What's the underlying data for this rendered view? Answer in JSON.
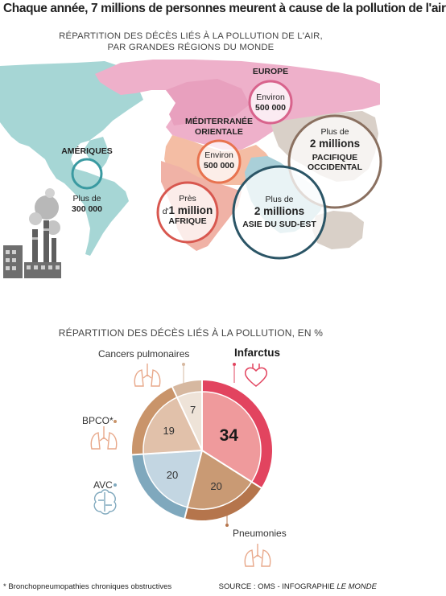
{
  "title": "Chaque année, 7 millions de personnes meurent à cause de la pollution de l'air",
  "map": {
    "subtitle_line1": "RÉPARTITION DES DÉCÈS LIÉS À LA POLLUTION DE L'AIR,",
    "subtitle_line2": "PAR GRANDES RÉGIONS DU MONDE",
    "regions": [
      {
        "name": "AMÉRIQUES",
        "prefix": "Plus de",
        "value": "300 000",
        "color": "#3a9aa1"
      },
      {
        "name": "EUROPE",
        "prefix": "Environ",
        "value": "500 000",
        "color": "#d8638c"
      },
      {
        "name": "MÉDITERRANÉE",
        "name2": "ORIENTALE",
        "prefix": "Environ",
        "value": "500 000",
        "color": "#e8734f"
      },
      {
        "name": "AFRIQUE",
        "prefix": "Près",
        "prefix2": "d'",
        "value": "1 million",
        "color": "#d8574f"
      },
      {
        "name": "PACIFIQUE",
        "name2": "OCCIDENTAL",
        "prefix": "Plus de",
        "value": "2 millions",
        "color": "#8a7060"
      },
      {
        "name": "ASIE DU SUD-EST",
        "prefix": "Plus de",
        "value": "2 millions",
        "color": "#2b5566"
      }
    ]
  },
  "chart_data": {
    "type": "pie",
    "title": "RÉPARTITION DES DÉCÈS LIÉS À LA POLLUTION, EN %",
    "unit": "%",
    "slices": [
      {
        "label": "Infarctus",
        "value": 34,
        "color": "#ef9a9c",
        "ring": "#e2445f",
        "labelColor": "#1a1a1a",
        "bold": true
      },
      {
        "label": "Pneumonies",
        "value": 20,
        "color": "#c99a74",
        "ring": "#b5754c",
        "labelColor": "#333"
      },
      {
        "label": "AVC",
        "value": 20,
        "color": "#c3d6e2",
        "ring": "#7fa8bd",
        "labelColor": "#333"
      },
      {
        "label": "BPCO*",
        "value": 19,
        "color": "#e1c1aa",
        "ring": "#c9946a",
        "labelColor": "#333"
      },
      {
        "label": "Cancers pulmonaires",
        "value": 7,
        "color": "#eee3d8",
        "ring": "#d6b8a0",
        "labelColor": "#333"
      }
    ]
  },
  "footnote": "* Bronchopneumopathies chroniques obstructives",
  "source": {
    "text": "SOURCE : OMS - INFOGRAPHIE ",
    "italic": "LE MONDE"
  }
}
